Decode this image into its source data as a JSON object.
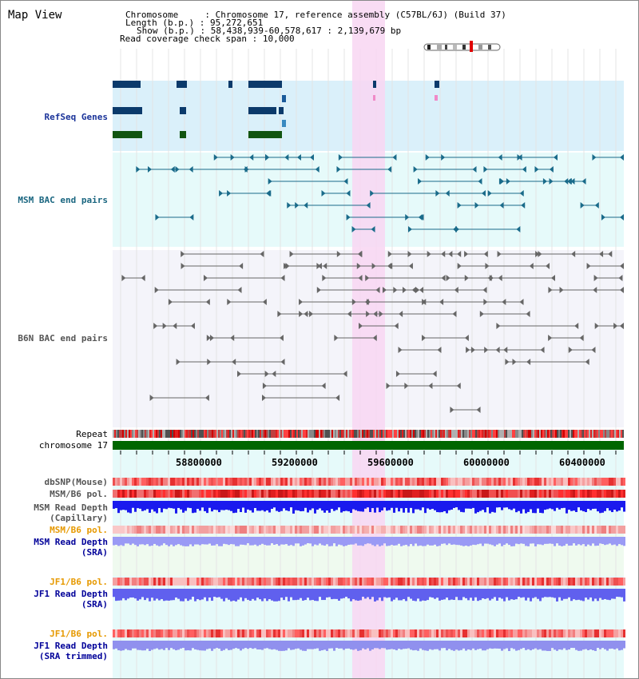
{
  "page": {
    "title": "Map View"
  },
  "info": {
    "chromosome_key": "Chromosome",
    "chromosome_val": "Chromosome 17, reference assembly (C57BL/6J) (Build 37)",
    "length_key": "Length (b.p.)",
    "length_val": "95,272,651",
    "show_key": "Show (b.p.)",
    "show_val": "58,438,939-60,578,617 : 2,139,679 bp",
    "span_key": "Read coverage check span",
    "span_val": "10,000"
  },
  "tracks": {
    "refseq": "RefSeq Genes",
    "msm_bac": "MSM BAC end pairs",
    "b6n_bac": "B6N BAC end pairs",
    "repeat": "Repeat",
    "chrom": "chromosome 17",
    "dbsnp": "dbSNP(Mouse)",
    "msm_b6_pol_1": "MSM/B6 pol.",
    "msm_depth_cap_1": "MSM Read Depth",
    "msm_depth_cap_2": "(Capillary)",
    "msm_b6_pol_2": "MSM/B6 pol.",
    "msm_depth_sra_1": "MSM Read Depth",
    "msm_depth_sra_2": "(SRA)",
    "jf1_b6_pol_1": "JF1/B6 pol.",
    "jf1_depth_sra_1": "JF1 Read Depth",
    "jf1_depth_sra_2": "(SRA)",
    "jf1_b6_pol_2": "JF1/B6 pol.",
    "jf1_depth_trim_1": "JF1 Read Depth",
    "jf1_depth_trim_2": "(SRA trimmed)"
  },
  "axis": {
    "ticks": [
      "58800000",
      "59200000",
      "59600000",
      "60000000",
      "60400000"
    ]
  },
  "colors": {
    "label_blue": "#1a3399",
    "label_teal": "#1a6680",
    "label_gray": "#555555",
    "label_orange": "#e69900",
    "label_navy": "#000099",
    "highlight": "#f8d6f2",
    "chrom_green": "#006600"
  }
}
